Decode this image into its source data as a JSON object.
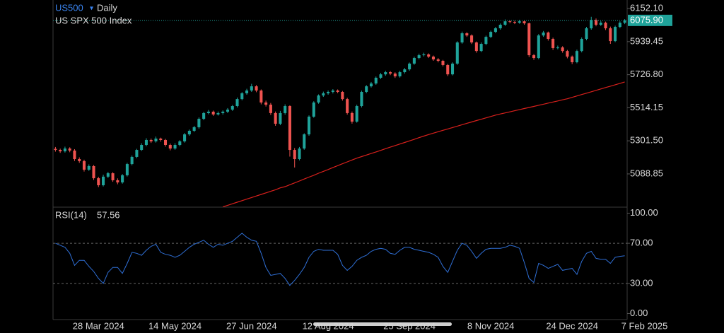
{
  "chart_data": {
    "type": "candlestick",
    "symbol": "US500",
    "interval": "Daily",
    "title": "US SPX 500 Index",
    "categories": [
      null,
      null,
      null,
      null,
      null,
      null,
      null,
      null,
      null,
      "28 Mar 2024",
      null,
      null,
      null,
      null,
      null,
      null,
      null,
      null,
      null,
      null,
      null,
      null,
      null,
      null,
      null,
      "14 May 2024",
      null,
      null,
      null,
      null,
      null,
      null,
      null,
      null,
      null,
      null,
      null,
      null,
      null,
      null,
      null,
      "27 Jun 2024",
      null,
      null,
      null,
      null,
      null,
      null,
      null,
      null,
      null,
      null,
      null,
      null,
      null,
      null,
      null,
      "12 Aug 2024",
      null,
      null,
      null,
      null,
      null,
      null,
      null,
      null,
      null,
      null,
      null,
      null,
      null,
      null,
      null,
      null,
      "25 Sep 2024",
      null,
      null,
      null,
      null,
      null,
      null,
      null,
      null,
      null,
      null,
      null,
      null,
      null,
      null,
      null,
      null,
      "8 Nov 2024",
      null,
      null,
      null,
      null,
      null,
      null,
      null,
      null,
      null,
      null,
      null,
      null,
      null,
      null,
      null,
      null,
      "24 Dec 2024",
      null,
      null,
      null,
      null,
      null,
      null,
      null,
      null,
      null,
      null,
      "7 Feb 2025"
    ],
    "open": [
      5250,
      5243,
      5234,
      5252,
      5239,
      5184,
      5171,
      5116,
      5139,
      5061,
      5016,
      5071,
      5093,
      5048,
      5034,
      5080,
      5152,
      5198,
      5243,
      5275,
      5307,
      5298,
      5316,
      5307,
      5275,
      5252,
      5275,
      5298,
      5343,
      5366,
      5389,
      5443,
      5480,
      5489,
      5471,
      5480,
      5489,
      5502,
      5525,
      5570,
      5607,
      5625,
      5652,
      5625,
      5548,
      5534,
      5480,
      5411,
      5480,
      5525,
      5243,
      5184,
      5252,
      5343,
      5457,
      5548,
      5593,
      5607,
      5616,
      5625,
      5616,
      5570,
      5480,
      5425,
      5525,
      5616,
      5652,
      5670,
      5707,
      5729,
      5743,
      5734,
      5716,
      5743,
      5761,
      5798,
      5834,
      5852,
      5857,
      5843,
      5825,
      5816,
      5789,
      5729,
      5798,
      5934,
      5993,
      5979,
      5934,
      5879,
      5925,
      5970,
      6002,
      6025,
      6048,
      6070,
      6066,
      6061,
      6070,
      6057,
      5852,
      5834,
      5979,
      5998,
      5957,
      5898,
      5902,
      5879,
      5843,
      5807,
      5879,
      5957,
      6025,
      6079,
      6048,
      6061,
      6025,
      5943,
      6034,
      6061
    ],
    "high": [
      5262,
      5251,
      5264,
      5260,
      5248,
      5195,
      5180,
      5150,
      5146,
      5070,
      5084,
      5102,
      5100,
      5060,
      5088,
      5160,
      5207,
      5250,
      5286,
      5318,
      5316,
      5329,
      5322,
      5314,
      5284,
      5286,
      5306,
      5352,
      5374,
      5398,
      5452,
      5488,
      5500,
      5496,
      5490,
      5497,
      5512,
      5532,
      5580,
      5615,
      5636,
      5668,
      5660,
      5632,
      5560,
      5545,
      5490,
      5494,
      5536,
      5530,
      5255,
      5262,
      5350,
      5465,
      5556,
      5600,
      5618,
      5625,
      5634,
      5632,
      5622,
      5578,
      5490,
      5534,
      5624,
      5660,
      5680,
      5715,
      5738,
      5752,
      5750,
      5742,
      5752,
      5770,
      5805,
      5842,
      5862,
      5868,
      5864,
      5850,
      5834,
      5822,
      5796,
      5806,
      5942,
      6004,
      6000,
      5986,
      5940,
      5934,
      5978,
      6010,
      6034,
      6056,
      6082,
      6076,
      6074,
      6080,
      6078,
      6062,
      5860,
      5988,
      6008,
      6004,
      5965,
      5914,
      5910,
      5886,
      5850,
      5888,
      5966,
      6034,
      6099,
      6088,
      6072,
      6068,
      6036,
      6042,
      6070,
      6084
    ],
    "low": [
      5232,
      5224,
      5226,
      5228,
      5172,
      5160,
      5104,
      5108,
      5050,
      5004,
      5008,
      5062,
      5038,
      5022,
      5026,
      5072,
      5144,
      5190,
      5236,
      5266,
      5288,
      5290,
      5296,
      5264,
      5240,
      5244,
      5266,
      5290,
      5334,
      5358,
      5380,
      5434,
      5472,
      5462,
      5464,
      5470,
      5480,
      5494,
      5516,
      5562,
      5598,
      5616,
      5614,
      5536,
      5522,
      5468,
      5398,
      5402,
      5470,
      5200,
      5130,
      5176,
      5244,
      5334,
      5450,
      5540,
      5584,
      5598,
      5606,
      5608,
      5560,
      5470,
      5412,
      5418,
      5516,
      5608,
      5644,
      5662,
      5698,
      5720,
      5724,
      5706,
      5708,
      5734,
      5752,
      5790,
      5826,
      5844,
      5834,
      5816,
      5806,
      5780,
      5718,
      5722,
      5790,
      5926,
      5970,
      5924,
      5868,
      5872,
      5916,
      5962,
      5994,
      6016,
      6040,
      6058,
      6052,
      6054,
      6048,
      5840,
      5822,
      5826,
      5970,
      5946,
      5886,
      5890,
      5868,
      5832,
      5795,
      5800,
      5870,
      5948,
      6016,
      6038,
      6040,
      6014,
      5925,
      5936,
      6026,
      6052
    ],
    "close": [
      5243,
      5234,
      5252,
      5239,
      5184,
      5171,
      5116,
      5139,
      5061,
      5016,
      5071,
      5093,
      5048,
      5034,
      5080,
      5152,
      5198,
      5243,
      5275,
      5307,
      5298,
      5316,
      5307,
      5275,
      5252,
      5275,
      5298,
      5343,
      5366,
      5389,
      5443,
      5480,
      5489,
      5471,
      5480,
      5489,
      5502,
      5525,
      5570,
      5607,
      5625,
      5652,
      5625,
      5548,
      5534,
      5480,
      5411,
      5480,
      5525,
      5243,
      5184,
      5252,
      5343,
      5457,
      5548,
      5593,
      5607,
      5616,
      5625,
      5616,
      5570,
      5480,
      5425,
      5525,
      5616,
      5652,
      5670,
      5707,
      5729,
      5743,
      5734,
      5716,
      5743,
      5761,
      5798,
      5834,
      5852,
      5857,
      5843,
      5825,
      5816,
      5789,
      5729,
      5798,
      5934,
      5993,
      5979,
      5934,
      5879,
      5925,
      5970,
      6002,
      6025,
      6048,
      6070,
      6066,
      6061,
      6070,
      6057,
      5852,
      5834,
      5979,
      5998,
      5957,
      5898,
      5902,
      5879,
      5843,
      5807,
      5879,
      5957,
      6025,
      6079,
      6048,
      6061,
      6025,
      5943,
      6034,
      6061,
      6075.9
    ],
    "up_color": "#1fa39a",
    "down_color": "#ef5350",
    "moving_average": {
      "color": "#d9201c",
      "values": [
        null,
        null,
        null,
        null,
        null,
        null,
        null,
        null,
        null,
        null,
        null,
        null,
        null,
        null,
        null,
        null,
        null,
        null,
        null,
        null,
        null,
        null,
        null,
        null,
        null,
        null,
        null,
        null,
        null,
        null,
        null,
        null,
        null,
        null,
        null,
        4877,
        4887,
        4897,
        4907,
        4917,
        4927,
        4937,
        4947,
        4957,
        4967,
        4977,
        4987,
        4999,
        5007,
        5019,
        5031,
        5043,
        5056,
        5068,
        5080,
        5093,
        5105,
        5117,
        5130,
        5142,
        5154,
        5166,
        5178,
        5190,
        5200,
        5210,
        5220,
        5230,
        5240,
        5251,
        5261,
        5271,
        5281,
        5291,
        5301,
        5311,
        5322,
        5332,
        5342,
        5351,
        5360,
        5369,
        5378,
        5387,
        5396,
        5405,
        5414,
        5423,
        5432,
        5440,
        5449,
        5458,
        5467,
        5474,
        5481,
        5488,
        5495,
        5502,
        5509,
        5516,
        5523,
        5530,
        5537,
        5544,
        5551,
        5558,
        5565,
        5572,
        5581,
        5590,
        5599,
        5608,
        5617,
        5626,
        5635,
        5644,
        5653,
        5662,
        5671,
        5680
      ]
    },
    "ylim": [
      4875,
      6207
    ],
    "yticks": [
      {
        "value": 5088.85,
        "label": "5088.85"
      },
      {
        "value": 5301.5,
        "label": "5301.50"
      },
      {
        "value": 5514.15,
        "label": "5514.15"
      },
      {
        "value": 5726.8,
        "label": "5726.80"
      },
      {
        "value": 5939.45,
        "label": "5939.45"
      },
      {
        "value": 6152.1,
        "label": "6152.10"
      }
    ],
    "last_price": {
      "value": 6075.9,
      "label": "6075.90",
      "color": "#1fa39a"
    },
    "rsi": {
      "type": "line",
      "name": "RSI(14)",
      "color": "#2f6fd6",
      "values": [
        70,
        68,
        66,
        60,
        48,
        53,
        53,
        47,
        42,
        35,
        30,
        41,
        46,
        46,
        40,
        50,
        61,
        60,
        58,
        63,
        67,
        69,
        61,
        59,
        58,
        56,
        58,
        62,
        66,
        69,
        71,
        73,
        69,
        66,
        69,
        68,
        70,
        72,
        76,
        80,
        76,
        73,
        72,
        60,
        46,
        38,
        39,
        40,
        35,
        28,
        33,
        39,
        46,
        56,
        62,
        64,
        63,
        63,
        63,
        59,
        48,
        43,
        47,
        53,
        56,
        58,
        62,
        64,
        65,
        64,
        60,
        59,
        63,
        66,
        66,
        64,
        63,
        62,
        61,
        59,
        56,
        47,
        41,
        52,
        63,
        70,
        68,
        62,
        55,
        60,
        64,
        65,
        65,
        65,
        66,
        68,
        67,
        65,
        51,
        35,
        31,
        50,
        48,
        45,
        47,
        49,
        43,
        44,
        45,
        39,
        52,
        60,
        62,
        55,
        54,
        54,
        50,
        56,
        57,
        57.56
      ],
      "ylim": [
        -6,
        106
      ],
      "yticks": [
        {
          "value": 0,
          "label": "0.00"
        },
        {
          "value": 30,
          "label": "30.00"
        },
        {
          "value": 70,
          "label": "70.00"
        },
        {
          "value": 100,
          "label": "100.00"
        }
      ],
      "levels": [
        30,
        70
      ]
    }
  }
}
